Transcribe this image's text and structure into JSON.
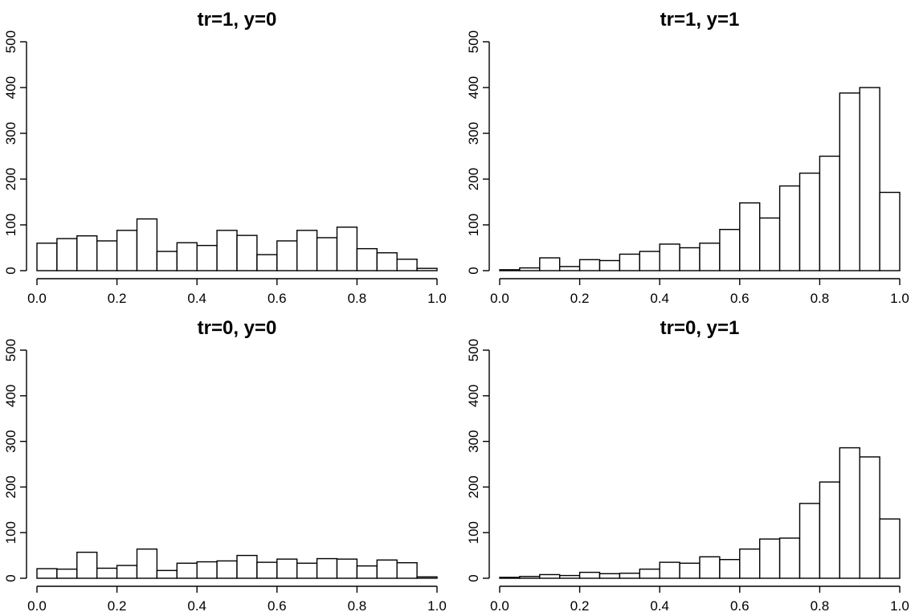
{
  "chart_data": [
    {
      "type": "bar",
      "title": "tr=1, y=0",
      "xlabel": "",
      "ylabel": "",
      "xlim": [
        0,
        1
      ],
      "ylim": [
        0,
        500
      ],
      "xticks": [
        "0.0",
        "0.2",
        "0.4",
        "0.6",
        "0.8",
        "1.0"
      ],
      "yticks": [
        "0",
        "100",
        "200",
        "300",
        "400",
        "500"
      ],
      "bin_width": 0.05,
      "values": [
        60,
        70,
        76,
        65,
        88,
        113,
        42,
        61,
        55,
        88,
        77,
        35,
        65,
        88,
        72,
        95,
        48,
        39,
        25,
        5
      ]
    },
    {
      "type": "bar",
      "title": "tr=1, y=1",
      "xlabel": "",
      "ylabel": "",
      "xlim": [
        0,
        1
      ],
      "ylim": [
        0,
        500
      ],
      "xticks": [
        "0.0",
        "0.2",
        "0.4",
        "0.6",
        "0.8",
        "1.0"
      ],
      "yticks": [
        "0",
        "100",
        "200",
        "300",
        "400",
        "500"
      ],
      "bin_width": 0.05,
      "values": [
        2,
        6,
        28,
        9,
        24,
        22,
        36,
        42,
        58,
        50,
        60,
        90,
        148,
        115,
        185,
        213,
        250,
        388,
        400,
        171
      ]
    },
    {
      "type": "bar",
      "title": "tr=0, y=0",
      "xlabel": "",
      "ylabel": "",
      "xlim": [
        0,
        1
      ],
      "ylim": [
        0,
        500
      ],
      "xticks": [
        "0.0",
        "0.2",
        "0.4",
        "0.6",
        "0.8",
        "1.0"
      ],
      "yticks": [
        "0",
        "100",
        "200",
        "300",
        "400",
        "500"
      ],
      "bin_width": 0.05,
      "values": [
        21,
        20,
        57,
        22,
        28,
        64,
        17,
        33,
        36,
        38,
        50,
        35,
        42,
        33,
        43,
        42,
        27,
        40,
        34,
        3
      ]
    },
    {
      "type": "bar",
      "title": "tr=0, y=1",
      "xlabel": "",
      "ylabel": "",
      "xlim": [
        0,
        1
      ],
      "ylim": [
        0,
        500
      ],
      "xticks": [
        "0.0",
        "0.2",
        "0.4",
        "0.6",
        "0.8",
        "1.0"
      ],
      "yticks": [
        "0",
        "100",
        "200",
        "300",
        "400",
        "500"
      ],
      "bin_width": 0.05,
      "values": [
        2,
        4,
        8,
        6,
        13,
        10,
        11,
        20,
        35,
        33,
        47,
        41,
        64,
        86,
        88,
        164,
        211,
        286,
        266,
        130
      ]
    }
  ]
}
